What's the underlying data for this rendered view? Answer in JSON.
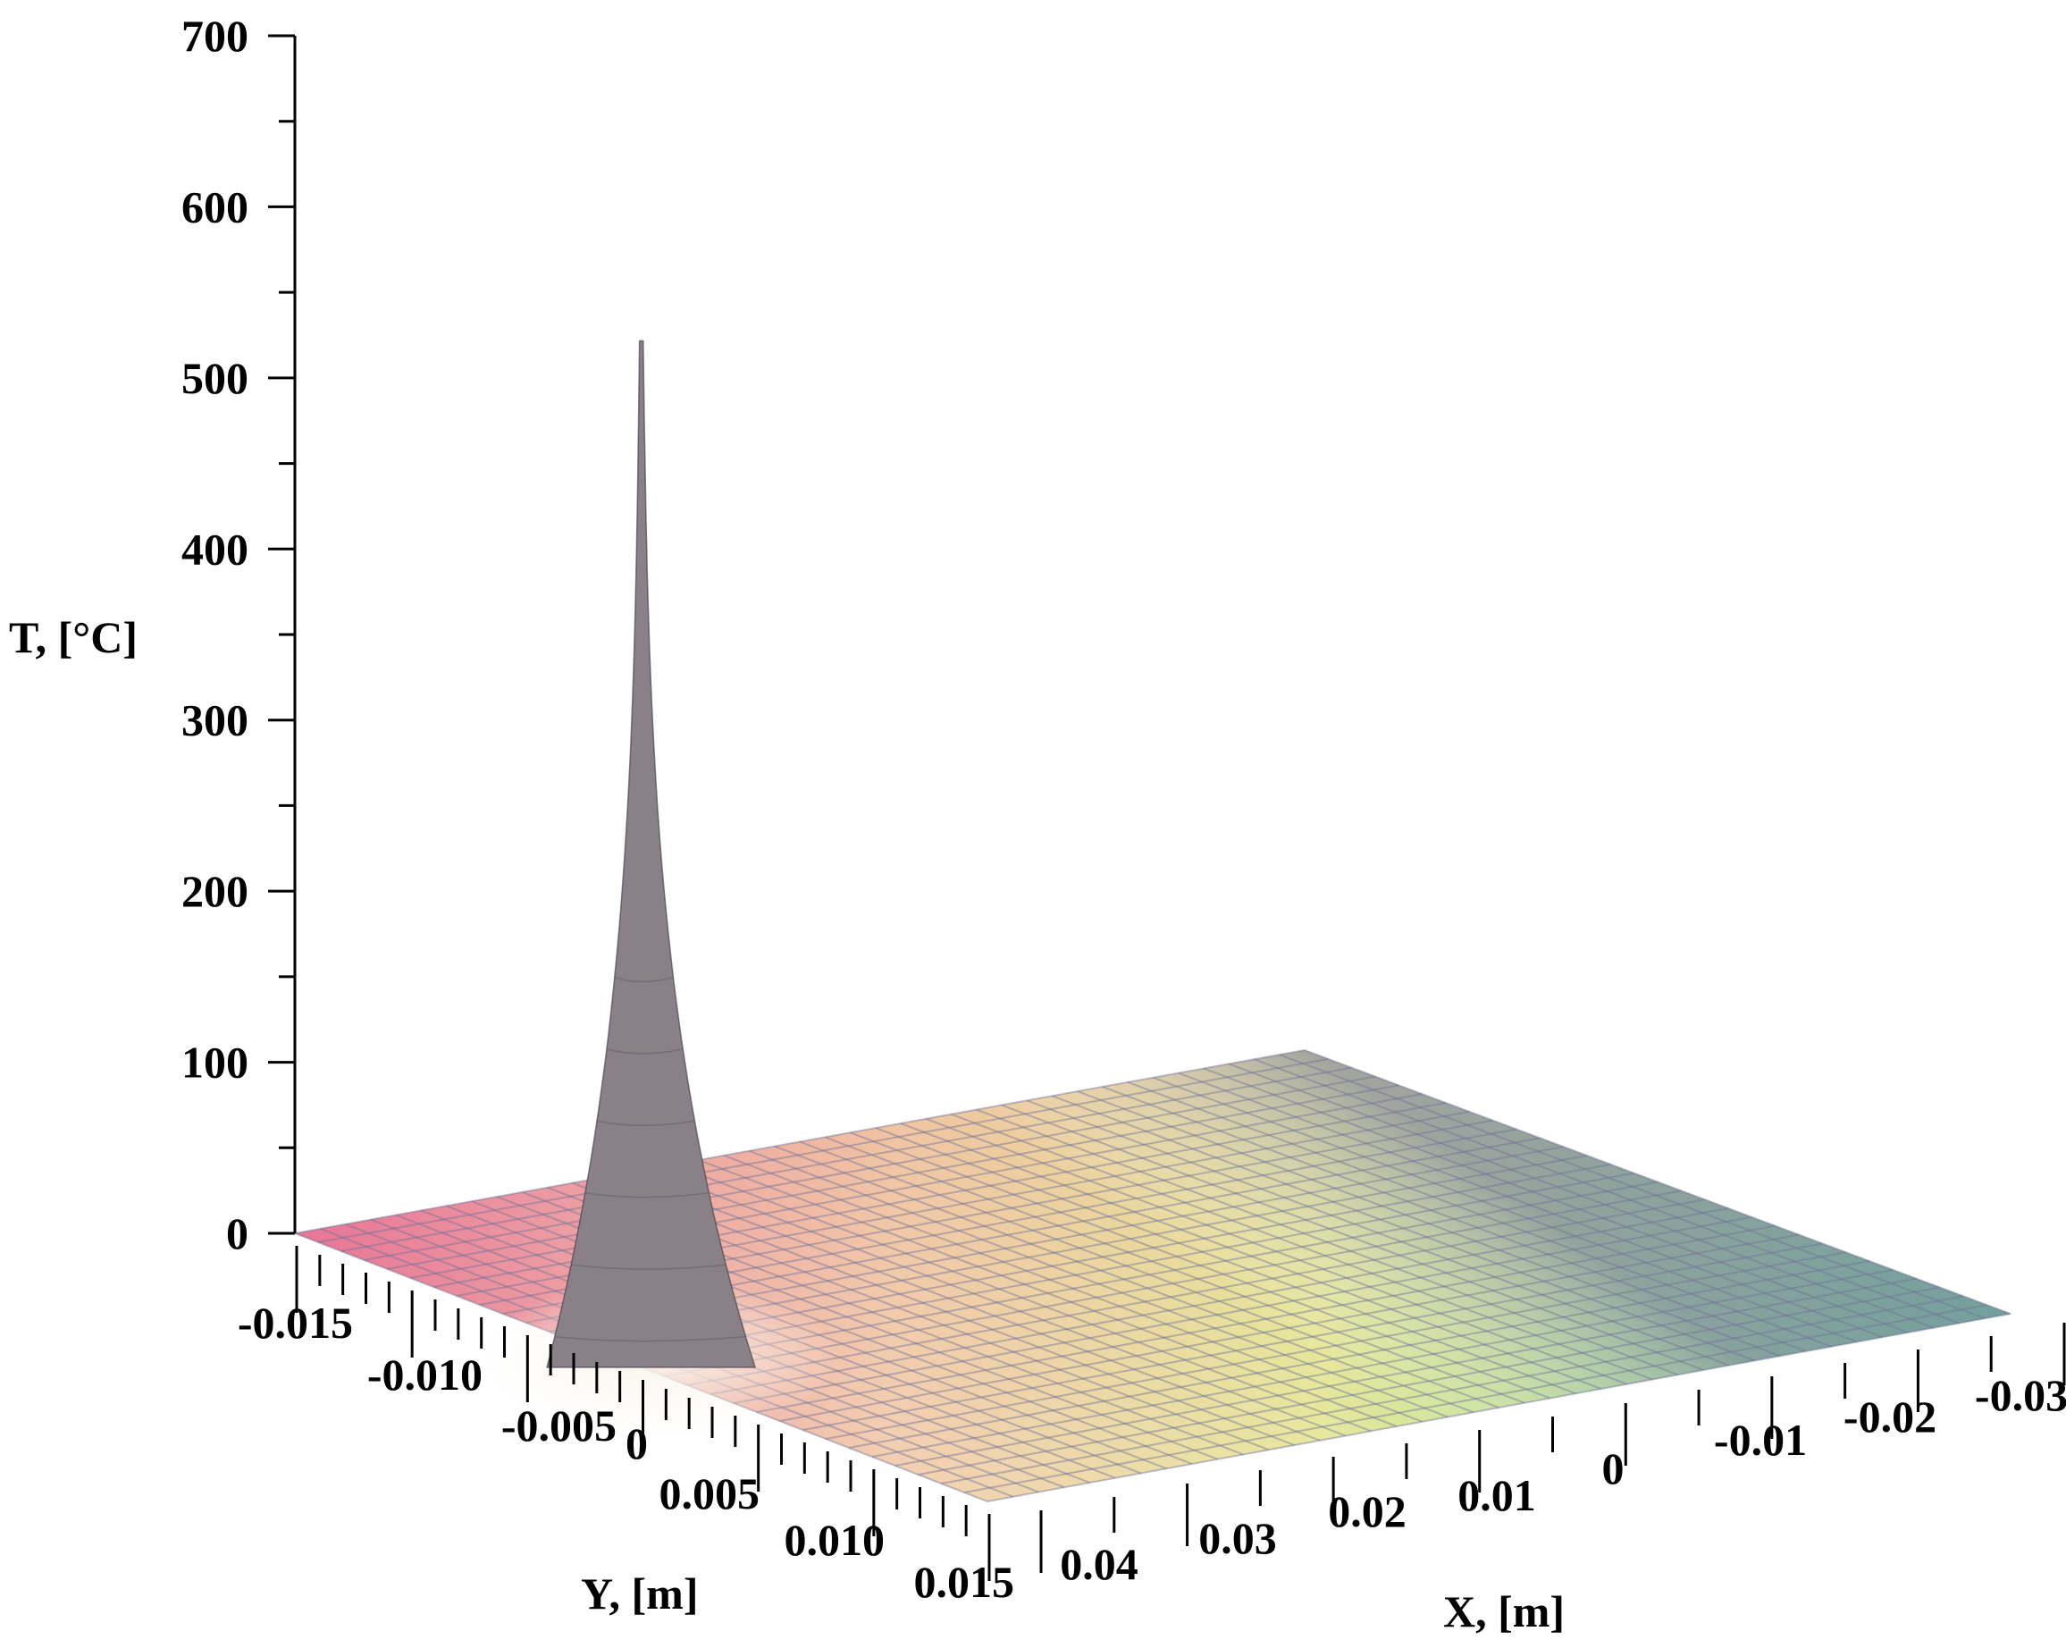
{
  "chart_data": {
    "type": "surface3d",
    "title": "",
    "zlabel": "T, [°C]",
    "xlabel": "X, [m]",
    "ylabel": "Y, [m]",
    "zlim": [
      0,
      700
    ],
    "xlim": [
      -0.03,
      0.04
    ],
    "ylim": [
      -0.015,
      0.015
    ],
    "z_ticks": [
      "0",
      "100",
      "200",
      "300",
      "400",
      "500",
      "600",
      "700"
    ],
    "x_ticks": [
      "0.04",
      "0.03",
      "0.02",
      "0.01",
      "0",
      "-0.01",
      "-0.02",
      "-0.03"
    ],
    "y_ticks": [
      "-0.015",
      "-0.010",
      "-0.005",
      "0",
      "0.005",
      "0.010",
      "0.015"
    ],
    "peak": {
      "x": 0.04,
      "y": 0.0,
      "T": 600
    },
    "base_T": 0,
    "mesh": "on",
    "colormap": [
      "#e2567f",
      "#f2e79a",
      "#7bdc98",
      "#7d84a8"
    ]
  }
}
